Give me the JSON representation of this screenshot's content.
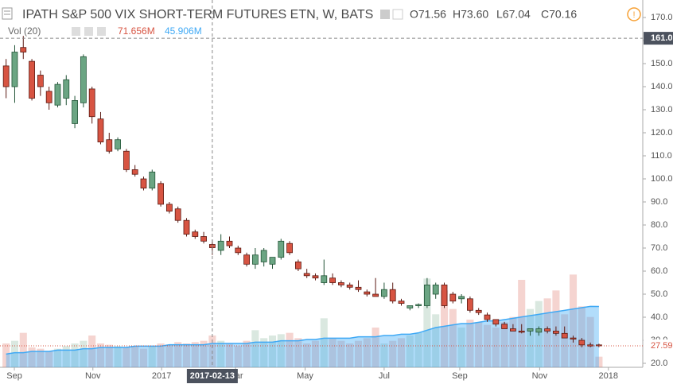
{
  "chart_data": {
    "type": "candlestick",
    "title": "IPATH S&P 500 VIX SHORT-TERM FUTURES ETN, W, BATS",
    "legend_ohlc": [
      "O71.56",
      "H73.60",
      "L67.04",
      "C70.16"
    ],
    "volume_title": "Vol (20)",
    "volume_legend": [
      "71.656M",
      "45.906M"
    ],
    "x": [
      0,
      1,
      2,
      3,
      4,
      5,
      6,
      7,
      8,
      9,
      10,
      11,
      12,
      13,
      14,
      15,
      16,
      17,
      18,
      19,
      20,
      21,
      22,
      23,
      24,
      25,
      26,
      27,
      28,
      29,
      30,
      31,
      32,
      33,
      34,
      35,
      36,
      37,
      38,
      39,
      40,
      41,
      42,
      43,
      44,
      45,
      46,
      47,
      48,
      49,
      50,
      51,
      52,
      53,
      54,
      55,
      56,
      57,
      58,
      59,
      60,
      61,
      62,
      63,
      64,
      65,
      66,
      67,
      68,
      69
    ],
    "open": [
      149,
      140,
      157,
      151,
      145,
      138,
      132,
      135,
      124,
      133,
      139,
      126,
      117,
      113,
      112,
      104,
      100,
      96,
      98,
      89,
      87,
      82,
      77,
      75,
      71.56,
      69,
      73,
      70,
      67,
      63,
      64,
      63,
      66,
      72,
      64,
      59,
      58,
      55,
      57,
      55,
      54,
      53,
      51,
      50,
      49,
      52,
      47,
      44,
      45,
      45,
      50,
      54,
      50,
      48,
      48,
      43,
      41,
      39,
      37,
      35,
      34,
      34,
      33.5,
      35,
      34,
      33,
      31,
      30,
      28,
      28
    ],
    "high": [
      152,
      158,
      162,
      152,
      147,
      140,
      142,
      145,
      136,
      154,
      140,
      129,
      120,
      118,
      113,
      106,
      101,
      104,
      99,
      90,
      88,
      83,
      78,
      77,
      73.6,
      76,
      75,
      71,
      68,
      70,
      70,
      65,
      74,
      73,
      65,
      61,
      59,
      65,
      59,
      56,
      55,
      56,
      52,
      57,
      55,
      55,
      48,
      45,
      46,
      57,
      55,
      55,
      51,
      50,
      49,
      44,
      42,
      39,
      38,
      37,
      37,
      35,
      36,
      36,
      36,
      36,
      32,
      31,
      29,
      28.5
    ],
    "low": [
      135,
      133,
      152,
      134,
      136,
      130,
      131,
      132,
      122,
      131,
      124,
      115,
      111,
      112,
      103,
      101,
      95,
      95,
      88,
      85,
      81,
      75,
      74,
      72,
      67.04,
      67,
      70,
      67,
      62,
      61,
      62,
      61,
      65,
      67,
      60,
      57,
      56,
      54,
      54,
      53,
      52,
      51,
      49,
      49,
      48,
      46,
      45,
      43,
      44,
      44,
      48,
      44,
      46,
      46,
      42,
      41,
      38,
      36,
      35,
      34,
      33,
      32,
      32,
      33,
      32,
      31,
      29,
      27,
      27,
      27
    ],
    "close": [
      140,
      155,
      155,
      135,
      140,
      133,
      141,
      143,
      134,
      153,
      127,
      116,
      112,
      117,
      104,
      102,
      96,
      103,
      89,
      86,
      82,
      76,
      75,
      73,
      70.16,
      73,
      71,
      68,
      63,
      67,
      69,
      66,
      73,
      68,
      61,
      58,
      57,
      58,
      55,
      54,
      53,
      52,
      50,
      49,
      52,
      47,
      46,
      45,
      45.5,
      54,
      54,
      45,
      47,
      49,
      43,
      42,
      39,
      37,
      35,
      34,
      33.5,
      35,
      35,
      34,
      33,
      31,
      30.5,
      28,
      27.5,
      27.59
    ],
    "volume": [
      18,
      20,
      26,
      15,
      14,
      12,
      14,
      16,
      18,
      20,
      24,
      18,
      17,
      16,
      15,
      16,
      14,
      16,
      18,
      17,
      19,
      18,
      19,
      20,
      24,
      20,
      18,
      16,
      20,
      28,
      22,
      24,
      25,
      26,
      22,
      18,
      20,
      37,
      22,
      20,
      18,
      20,
      22,
      30,
      18,
      20,
      22,
      24,
      26,
      67,
      40,
      58,
      44,
      30,
      36,
      34,
      32,
      30,
      34,
      38,
      66,
      44,
      50,
      52,
      58,
      40,
      70,
      46,
      38,
      8
    ],
    "volume_ma": [
      10,
      11,
      11,
      12,
      12,
      12,
      13,
      13,
      13,
      14,
      14,
      15,
      15,
      15,
      15,
      16,
      16,
      16,
      16,
      17,
      17,
      17,
      17,
      17,
      18,
      18,
      18,
      18,
      18,
      19,
      19,
      19,
      20,
      20,
      20,
      21,
      21,
      22,
      22,
      22,
      22,
      23,
      23,
      23,
      24,
      24,
      25,
      25,
      26,
      28,
      30,
      31,
      32,
      33,
      33,
      34,
      35,
      35,
      36,
      37,
      38,
      39,
      40,
      41,
      42,
      43,
      44,
      45,
      46,
      45.906
    ],
    "up_color": "#6ba583",
    "down_color": "#d75442",
    "volume_ma_color": "#3fa9f5",
    "xlim": [
      -0.71,
      74.1
    ],
    "xticks": [
      {
        "value": 0.96,
        "label": "Sep"
      },
      {
        "value": 10.1,
        "label": "Nov"
      },
      {
        "value": 18.1,
        "label": "2017"
      },
      {
        "value": 26.7,
        "label": "Mar"
      },
      {
        "value": 34.8,
        "label": "May"
      },
      {
        "value": 44.0,
        "label": "Jul"
      },
      {
        "value": 52.8,
        "label": "Sep"
      },
      {
        "value": 62.1,
        "label": "Nov"
      },
      {
        "value": 70.1,
        "label": "2018"
      }
    ],
    "ylim": [
      18.28,
      177.59
    ],
    "yticks": [
      {
        "value": 170,
        "label": "170.0"
      },
      {
        "value": 160,
        "label": "160.0"
      },
      {
        "value": 150,
        "label": "150.0"
      },
      {
        "value": 140,
        "label": "140.0"
      },
      {
        "value": 130,
        "label": "130.0"
      },
      {
        "value": 120,
        "label": "120.0"
      },
      {
        "value": 110,
        "label": "110.0"
      },
      {
        "value": 100,
        "label": "100.0"
      },
      {
        "value": 90,
        "label": "90.0"
      },
      {
        "value": 80,
        "label": "80.0"
      },
      {
        "value": 70,
        "label": "70.0"
      },
      {
        "value": 60,
        "label": "60.0"
      },
      {
        "value": 50,
        "label": "50.0"
      },
      {
        "value": 40,
        "label": "40.0"
      },
      {
        "value": 30,
        "label": "30.0"
      },
      {
        "value": 20,
        "label": "20.0"
      }
    ],
    "volume_lim": [
      0,
      240
    ],
    "crosshair": {
      "x": {
        "value": 24.0,
        "label": "2017-02-13"
      },
      "y": {
        "value": 161,
        "label": "161.0"
      }
    },
    "last_price": 27.59
  }
}
